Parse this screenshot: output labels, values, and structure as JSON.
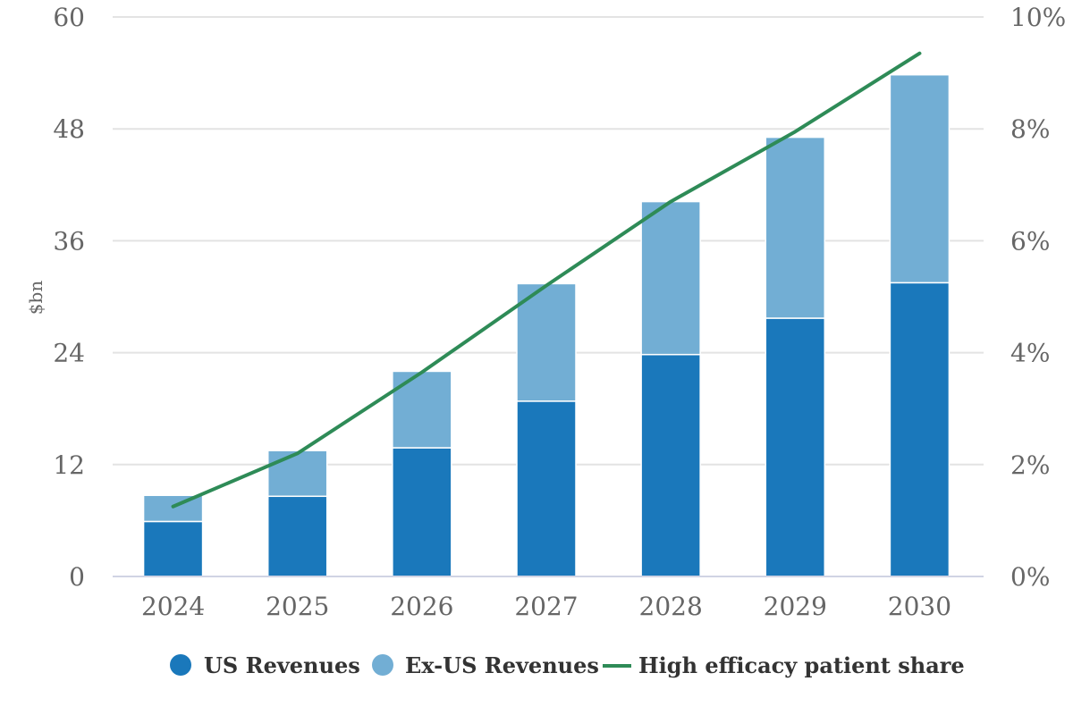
{
  "chart_data": {
    "type": "bar",
    "subtype": "stacked-bar-with-line",
    "title": "",
    "xlabel": "",
    "ylabel": "$bn",
    "y2label": "",
    "categories": [
      "2024",
      "2025",
      "2026",
      "2027",
      "2028",
      "2029",
      "2030"
    ],
    "ylim": [
      0,
      60
    ],
    "yticks": [
      0,
      12,
      24,
      36,
      48,
      60
    ],
    "ytick_labels": [
      "0",
      "12",
      "24",
      "36",
      "48",
      "60"
    ],
    "y2lim": [
      0,
      10
    ],
    "y2ticks": [
      0,
      2,
      4,
      6,
      8,
      10
    ],
    "y2tick_labels": [
      "0%",
      "2%",
      "4%",
      "6%",
      "8%",
      "10%"
    ],
    "grid": true,
    "legend_position": "bottom",
    "series": [
      {
        "name": "US Revenues",
        "kind": "bar",
        "axis": "left",
        "color": "#1a78bb",
        "values": [
          5.9,
          8.6,
          13.8,
          18.8,
          23.8,
          27.7,
          31.5
        ]
      },
      {
        "name": "Ex-US Revenues",
        "kind": "bar",
        "axis": "left",
        "color": "#72aed4",
        "values": [
          2.8,
          4.9,
          8.2,
          12.6,
          16.4,
          19.4,
          22.3
        ]
      },
      {
        "name": "High efficacy patient share",
        "kind": "line",
        "axis": "right",
        "unit": "%",
        "color": "#2e8b57",
        "values": [
          1.25,
          2.2,
          3.65,
          5.2,
          6.7,
          7.95,
          9.35
        ]
      }
    ]
  }
}
